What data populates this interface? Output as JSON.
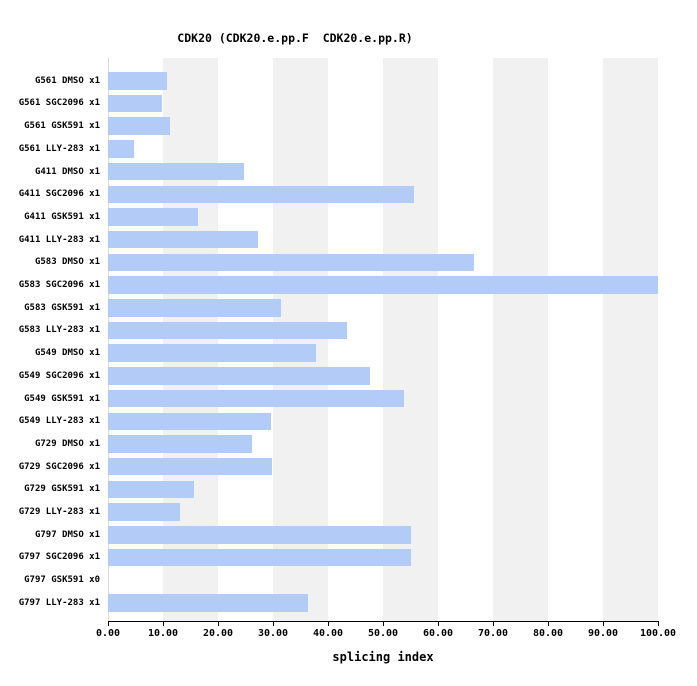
{
  "title": "CDK20 (CDK20.e.pp.F  CDK20.e.pp.R)",
  "chart_data": {
    "type": "bar",
    "orientation": "horizontal",
    "title": "CDK20 (CDK20.e.pp.F  CDK20.e.pp.R)",
    "xlabel": "splicing index",
    "ylabel": "",
    "xlim": [
      0,
      100
    ],
    "xticks": [
      0,
      10,
      20,
      30,
      40,
      50,
      60,
      70,
      80,
      90,
      100
    ],
    "xtick_labels": [
      "0.00",
      "10.00",
      "20.00",
      "30.00",
      "40.00",
      "50.00",
      "60.00",
      "70.00",
      "80.00",
      "90.00",
      "100.00"
    ],
    "categories": [
      "G561 DMSO x1",
      "G561 SGC2096 x1",
      "G561 GSK591 x1",
      "G561 LLY-283 x1",
      "G411 DMSO x1",
      "G411 SGC2096 x1",
      "G411 GSK591 x1",
      "G411 LLY-283 x1",
      "G583 DMSO x1",
      "G583 SGC2096 x1",
      "G583 GSK591 x1",
      "G583 LLY-283 x1",
      "G549 DMSO x1",
      "G549 SGC2096 x1",
      "G549 GSK591 x1",
      "G549 LLY-283 x1",
      "G729 DMSO x1",
      "G729 SGC2096 x1",
      "G729 GSK591 x1",
      "G729 LLY-283 x1",
      "G797 DMSO x1",
      "G797 SGC2096 x1",
      "G797 GSK591 x0",
      "G797 LLY-283 x1"
    ],
    "values": [
      10.7,
      9.8,
      11.2,
      4.7,
      24.8,
      55.6,
      16.4,
      27.2,
      66.6,
      100.0,
      31.4,
      43.4,
      37.9,
      47.7,
      53.9,
      29.6,
      26.2,
      29.9,
      15.7,
      13.0,
      55.1,
      55.0,
      0.0,
      36.3
    ],
    "stripe_bands": [
      [
        10,
        20
      ],
      [
        30,
        40
      ],
      [
        50,
        60
      ],
      [
        70,
        80
      ],
      [
        90,
        100
      ]
    ],
    "grid": false,
    "legend": false,
    "colors": {
      "bar": "#b2ccf7",
      "stripe": "#f1f1f1",
      "axis": "#000000",
      "y_axis_line": "#d9d9d9",
      "background": "#ffffff",
      "text": "#000000"
    }
  }
}
